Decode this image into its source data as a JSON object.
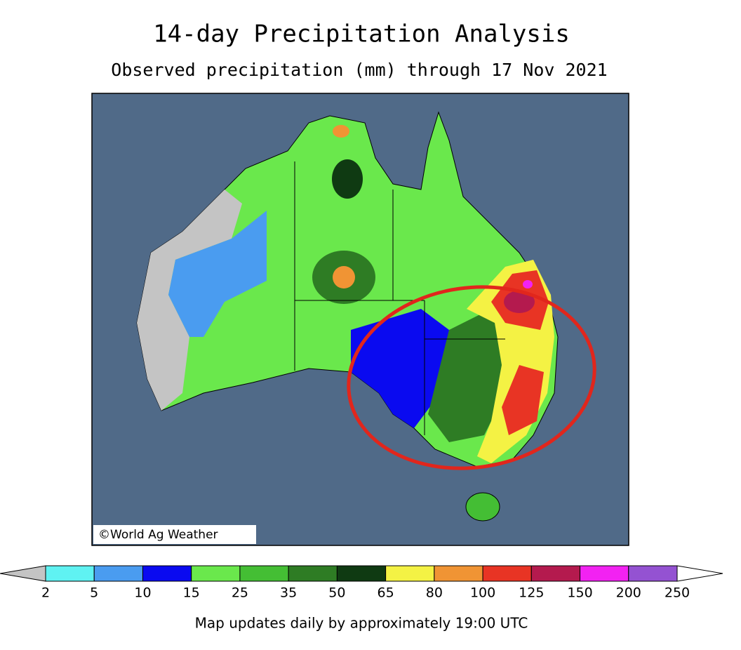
{
  "header": {
    "title": "14-day Precipitation Analysis",
    "subtitle": "Observed precipitation (mm) through 17 Nov 2021"
  },
  "map": {
    "credit": "©World Ag Weather"
  },
  "legend": {
    "ticks": [
      2,
      5,
      10,
      15,
      25,
      35,
      50,
      65,
      80,
      100,
      125,
      150,
      200,
      250
    ],
    "colors": [
      "#5ff2f2",
      "#4a9cf0",
      "#0a0af0",
      "#6ae84c",
      "#44be34",
      "#2e7c24",
      "#0f3a12",
      "#f4f244",
      "#f09434",
      "#e83424",
      "#b41a4e",
      "#f222f2",
      "#9452d2"
    ],
    "under_color": "#c4c4c4",
    "over_color": "#ffffff"
  },
  "footer": "Map updates daily by approximately 19:00 UTC"
}
